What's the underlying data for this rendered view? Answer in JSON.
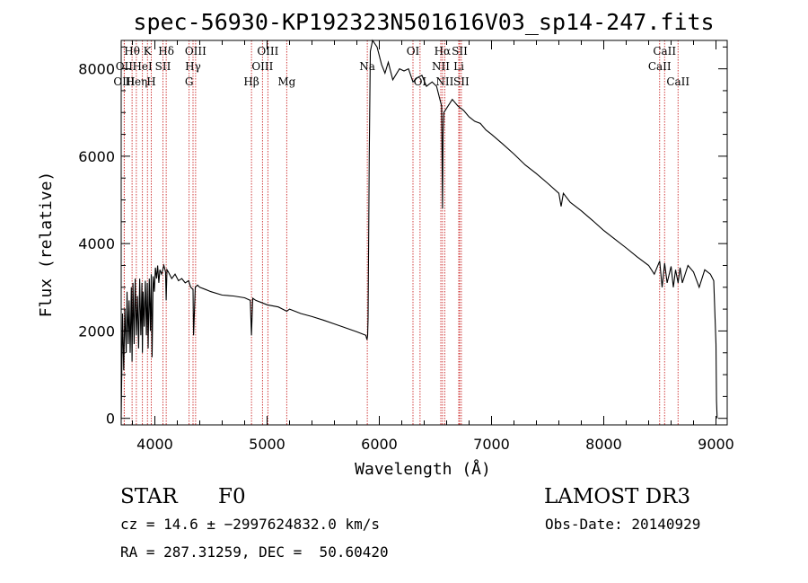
{
  "chart_data": {
    "type": "line",
    "title": "spec-56930-KP192323N501616V03_sp14-247.fits",
    "xlabel": "Wavelength (Å)",
    "ylabel": "Flux (relative)",
    "xlim": [
      3700,
      9100
    ],
    "ylim": [
      -150,
      8650
    ],
    "xticks": [
      4000,
      5000,
      6000,
      7000,
      8000,
      9000
    ],
    "yticks": [
      0,
      2000,
      4000,
      6000,
      8000
    ],
    "series": [
      {
        "name": "flux",
        "x": [
          3700,
          3712,
          3722,
          3733,
          3745,
          3752,
          3762,
          3770,
          3780,
          3790,
          3797,
          3805,
          3815,
          3825,
          3835,
          3845,
          3855,
          3865,
          3875,
          3885,
          3889,
          3895,
          3905,
          3915,
          3925,
          3933,
          3940,
          3950,
          3960,
          3968,
          3975,
          3985,
          3995,
          4005,
          4015,
          4025,
          4035,
          4045,
          4060,
          4080,
          4095,
          4101,
          4108,
          4120,
          4150,
          4180,
          4210,
          4240,
          4270,
          4300,
          4320,
          4340,
          4345,
          4352,
          4360,
          4380,
          4400,
          4450,
          4500,
          4600,
          4700,
          4800,
          4850,
          4861,
          4872,
          4900,
          4950,
          5000,
          5100,
          5175,
          5200,
          5300,
          5400,
          5500,
          5600,
          5700,
          5800,
          5880,
          5890,
          5896,
          5900,
          5910,
          5920,
          5940,
          5980,
          6020,
          6050,
          6080,
          6120,
          6180,
          6220,
          6260,
          6300,
          6340,
          6380,
          6420,
          6470,
          6510,
          6540,
          6555,
          6563,
          6568,
          6575,
          6600,
          6650,
          6700,
          6750,
          6800,
          6850,
          6900,
          6950,
          7000,
          7100,
          7200,
          7300,
          7400,
          7500,
          7600,
          7620,
          7640,
          7700,
          7800,
          7900,
          8000,
          8100,
          8200,
          8300,
          8400,
          8450,
          8498,
          8520,
          8542,
          8565,
          8600,
          8620,
          8640,
          8662,
          8680,
          8700,
          8750,
          8800,
          8850,
          8900,
          8950,
          8980,
          9000,
          9005,
          9010
        ],
        "values": [
          0,
          2400,
          1100,
          2500,
          1500,
          2900,
          1700,
          2700,
          1500,
          3000,
          1300,
          3100,
          1700,
          3200,
          1900,
          2800,
          1600,
          3200,
          1900,
          3100,
          1500,
          2900,
          2100,
          3150,
          1900,
          3100,
          1600,
          3200,
          2000,
          3300,
          1400,
          3250,
          2900,
          3450,
          3200,
          3500,
          3100,
          3400,
          3300,
          3500,
          3350,
          2700,
          3400,
          3350,
          3200,
          3300,
          3150,
          3200,
          3100,
          3150,
          3000,
          2950,
          1900,
          2400,
          3000,
          3050,
          3000,
          2950,
          2900,
          2820,
          2800,
          2760,
          2700,
          1900,
          2750,
          2700,
          2650,
          2600,
          2550,
          2450,
          2500,
          2400,
          2330,
          2250,
          2160,
          2070,
          1980,
          1900,
          1800,
          1900,
          2300,
          6000,
          8400,
          8700,
          8500,
          8100,
          7900,
          8150,
          7750,
          8000,
          7950,
          8000,
          7700,
          7800,
          7850,
          7600,
          7700,
          7600,
          7300,
          7150,
          4800,
          6500,
          7000,
          7100,
          7300,
          7150,
          7050,
          6900,
          6800,
          6750,
          6600,
          6500,
          6280,
          6050,
          5800,
          5600,
          5380,
          5150,
          4850,
          5150,
          4950,
          4750,
          4530,
          4300,
          4100,
          3900,
          3690,
          3500,
          3300,
          3600,
          3000,
          3550,
          3100,
          3480,
          3000,
          3400,
          3100,
          3450,
          3100,
          3500,
          3350,
          3000,
          3400,
          3300,
          3150,
          1700,
          400,
          0
        ]
      }
    ],
    "lines": [
      {
        "label": "Hθ",
        "x": 3797,
        "row": 0
      },
      {
        "label": "OII",
        "x": 3727,
        "row": 1
      },
      {
        "label": "OIII",
        "x": 3727,
        "row": 2
      },
      {
        "label": "Heη",
        "x": 3835,
        "row": 2
      },
      {
        "label": "K",
        "x": 3934,
        "row": 0
      },
      {
        "label": "HeI",
        "x": 3889,
        "row": 1
      },
      {
        "label": "SII",
        "x": 4072,
        "row": 1
      },
      {
        "label": "H",
        "x": 3968,
        "row": 2
      },
      {
        "label": "Hδ",
        "x": 4101,
        "row": 0
      },
      {
        "label": "OIII",
        "x": 4363,
        "row": 0
      },
      {
        "label": "Hγ",
        "x": 4340,
        "row": 1
      },
      {
        "label": "G",
        "x": 4305,
        "row": 2
      },
      {
        "label": "Hβ",
        "x": 4861,
        "row": 2
      },
      {
        "label": "OIII",
        "x": 5007,
        "row": 0
      },
      {
        "label": "OIII",
        "x": 4959,
        "row": 1
      },
      {
        "label": "Mg",
        "x": 5175,
        "row": 2
      },
      {
        "label": "Na",
        "x": 5893,
        "row": 1
      },
      {
        "label": "OI",
        "x": 6300,
        "row": 0
      },
      {
        "label": "OI",
        "x": 6363,
        "row": 2
      },
      {
        "label": "Hα",
        "x": 6563,
        "row": 0
      },
      {
        "label": "SII",
        "x": 6716,
        "row": 0
      },
      {
        "label": "NII",
        "x": 6548,
        "row": 1
      },
      {
        "label": "Li",
        "x": 6708,
        "row": 1
      },
      {
        "label": "NII",
        "x": 6583,
        "row": 2
      },
      {
        "label": "SII",
        "x": 6731,
        "row": 2
      },
      {
        "label": "CaII",
        "x": 8542,
        "row": 0
      },
      {
        "label": "CaII",
        "x": 8498,
        "row": 1
      },
      {
        "label": "CaII",
        "x": 8662,
        "row": 2
      }
    ]
  },
  "info": {
    "class": "STAR",
    "subclass": "F0",
    "survey": "LAMOST DR3",
    "cz": "cz = 14.6 ± −2997624832.0 km/s",
    "obs_date": "Obs-Date: 20140929",
    "coords": "RA = 287.31259, DEC =  50.60420"
  }
}
